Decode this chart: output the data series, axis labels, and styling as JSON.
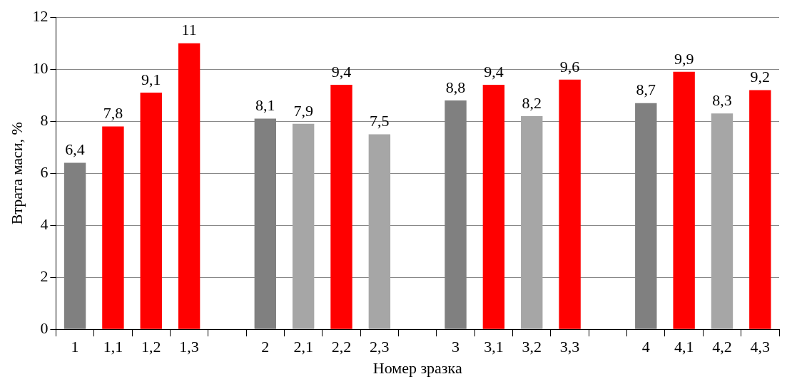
{
  "chart_data": {
    "type": "bar",
    "xlabel": "Номер зразка",
    "ylabel": "Втрата маси, %",
    "categories": [
      "1",
      "1,1",
      "1,2",
      "1,3",
      null,
      "2",
      "2,1",
      "2,2",
      "2,3",
      null,
      "3",
      "3,1",
      "3,2",
      "3,3",
      null,
      "4",
      "4,1",
      "4,2",
      "4,3"
    ],
    "values": [
      6.4,
      7.8,
      9.1,
      11,
      null,
      8.1,
      7.9,
      9.4,
      7.5,
      null,
      8.8,
      9.4,
      8.2,
      9.6,
      null,
      8.7,
      9.9,
      8.3,
      9.2
    ],
    "colors": [
      "#808080",
      "#ff0000",
      "#ff0000",
      "#ff0000",
      null,
      "#808080",
      "#a6a6a6",
      "#ff0000",
      "#a6a6a6",
      null,
      "#808080",
      "#ff0000",
      "#a6a6a6",
      "#ff0000",
      null,
      "#808080",
      "#ff0000",
      "#a6a6a6",
      "#ff0000"
    ],
    "value_labels": [
      "6,4",
      "7,8",
      "9,1",
      "11",
      null,
      "8,1",
      "7,9",
      "9,4",
      "7,5",
      null,
      "8,8",
      "9,4",
      "8,2",
      "9,6",
      null,
      "8,7",
      "9,9",
      "8,3",
      "9,2"
    ],
    "ylim": [
      0,
      12
    ],
    "yticks": [
      0,
      2,
      4,
      6,
      8,
      10,
      12
    ],
    "grid": "y"
  }
}
